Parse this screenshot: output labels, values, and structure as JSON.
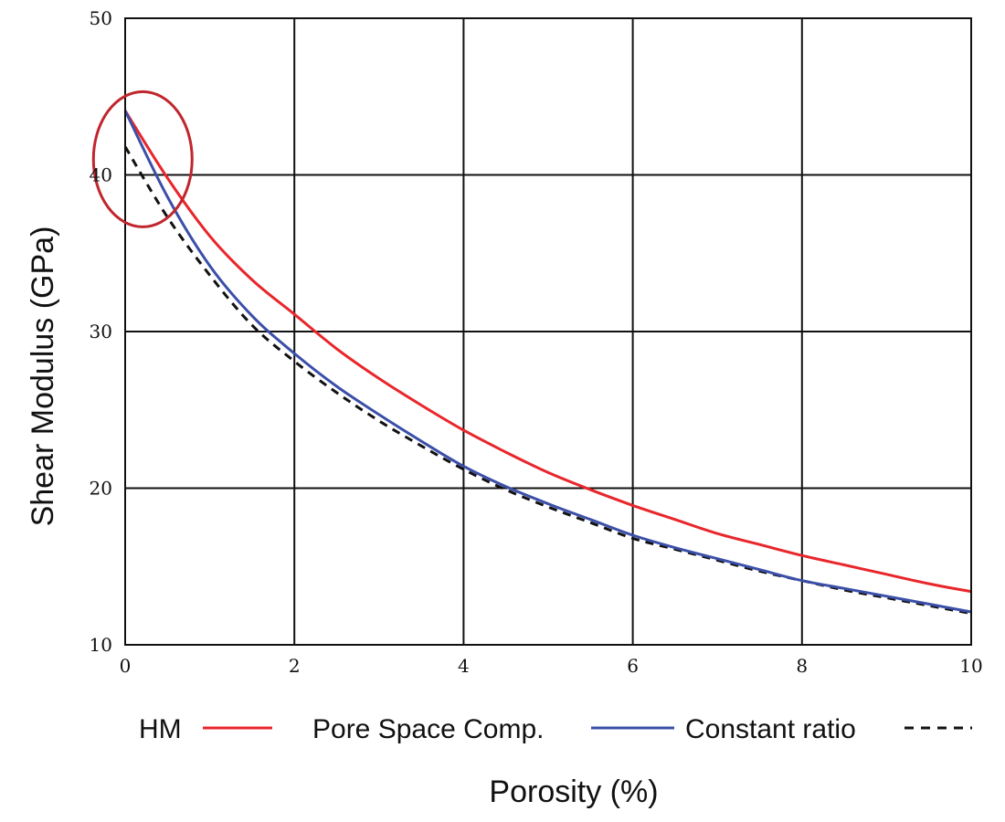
{
  "chart_data": {
    "type": "line",
    "xlabel": "Porosity (%)",
    "ylabel": "Shear Modulus (GPa)",
    "xlim": [
      0,
      10
    ],
    "ylim": [
      10,
      50
    ],
    "x_ticks": [
      0,
      2,
      4,
      6,
      8,
      10
    ],
    "y_ticks": [
      10,
      20,
      30,
      40,
      50
    ],
    "grid": true,
    "legend_position": "bottom",
    "annotation": {
      "shape": "ellipse",
      "color": "#c0262d",
      "center": [
        0.1,
        41
      ],
      "description": "highlights curve start"
    },
    "series": [
      {
        "name": "HM",
        "color": "#e8262b",
        "style": "solid",
        "x": [
          0,
          0.5,
          1,
          1.5,
          2,
          2.5,
          3,
          3.5,
          4,
          4.5,
          5,
          5.5,
          6,
          6.5,
          7,
          7.5,
          8,
          8.5,
          9,
          9.5,
          10
        ],
        "y": [
          44.1,
          39.8,
          36.1,
          33.3,
          31.1,
          28.9,
          27.0,
          25.3,
          23.7,
          22.3,
          21.0,
          19.9,
          18.9,
          18.0,
          17.1,
          16.4,
          15.7,
          15.1,
          14.5,
          13.9,
          13.4
        ]
      },
      {
        "name": "Pore Space Comp.",
        "color": "#3b4fa8",
        "style": "solid",
        "x": [
          0,
          0.5,
          1,
          1.5,
          2,
          2.5,
          3,
          3.5,
          4,
          4.5,
          5,
          5.5,
          6,
          6.5,
          7,
          7.5,
          8,
          8.5,
          9,
          9.5,
          10
        ],
        "y": [
          44.1,
          38.6,
          34.2,
          31.0,
          28.6,
          26.5,
          24.7,
          23.0,
          21.4,
          20.1,
          19.0,
          18.0,
          17.0,
          16.2,
          15.5,
          14.8,
          14.1,
          13.6,
          13.1,
          12.6,
          12.1
        ]
      },
      {
        "name": "Constant ratio",
        "color": "#111111",
        "style": "dashed",
        "x": [
          0,
          0.5,
          1,
          1.5,
          2,
          2.5,
          3,
          3.5,
          4,
          4.5,
          5,
          5.5,
          6,
          6.5,
          7,
          7.5,
          8,
          8.5,
          9,
          9.5,
          10
        ],
        "y": [
          41.8,
          37.3,
          33.6,
          30.4,
          28.1,
          26.1,
          24.3,
          22.7,
          21.2,
          19.9,
          18.8,
          17.8,
          16.8,
          16.1,
          15.4,
          14.7,
          14.1,
          13.5,
          13.0,
          12.5,
          12.0
        ]
      }
    ]
  }
}
